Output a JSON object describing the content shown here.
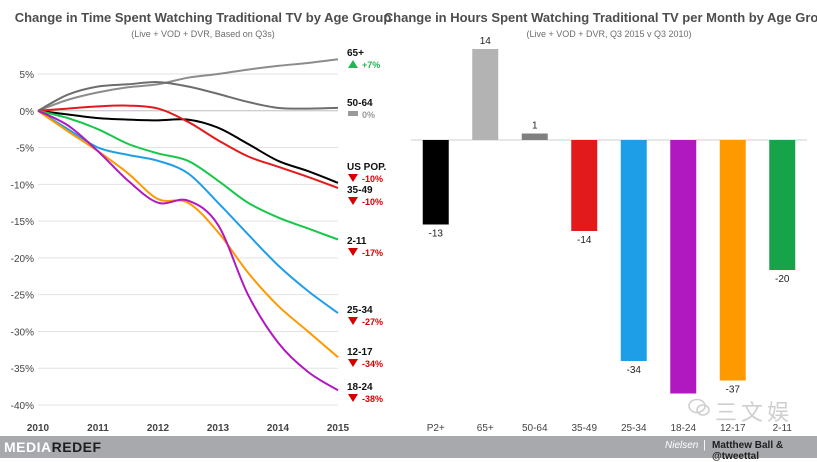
{
  "chart_data": [
    {
      "type": "line",
      "title": "Change in Time Spent Watching Traditional TV by Age Group",
      "subtitle": "(Live + VOD + DVR, Based on Q3s)",
      "x": [
        2010,
        2010.5,
        2011,
        2011.5,
        2012,
        2012.5,
        2013,
        2013.5,
        2014,
        2014.5,
        2015
      ],
      "xticks": [
        "2010",
        "2011",
        "2012",
        "2013",
        "2014",
        "2015"
      ],
      "ylim": [
        -40,
        5
      ],
      "yticks": [
        "5%",
        "0%",
        "-5%",
        "-10%",
        "-15%",
        "-20%",
        "-25%",
        "-30%",
        "-35%",
        "-40%"
      ],
      "grid": true,
      "series": [
        {
          "name": "65+",
          "color": "#8c8c8c",
          "values": [
            0,
            1.5,
            2.5,
            3.2,
            3.6,
            4.5,
            5.0,
            5.6,
            6.1,
            6.5,
            7.0
          ],
          "change": "+7%",
          "direction": "up",
          "arrow_color": "#1db954"
        },
        {
          "name": "50-64",
          "color": "#6d6d6d",
          "values": [
            0,
            2.2,
            3.3,
            3.6,
            3.9,
            3.3,
            2.3,
            1.2,
            0.4,
            0.3,
            0.4
          ],
          "change": "0%",
          "direction": "flat",
          "arrow_color": "#9a9a9a"
        },
        {
          "name": "US POP.",
          "color": "#000000",
          "values": [
            0,
            -0.5,
            -1.0,
            -1.2,
            -1.3,
            -1.2,
            -2.3,
            -4.5,
            -6.8,
            -8.2,
            -9.8
          ],
          "change": "-10%",
          "direction": "down",
          "arrow_color": "#d40000"
        },
        {
          "name": "35-49",
          "color": "#e31a1c",
          "values": [
            0,
            0.3,
            0.6,
            0.7,
            0.3,
            -1.5,
            -4.0,
            -6.2,
            -7.6,
            -9.0,
            -10.5
          ],
          "change": "-10%",
          "direction": "down",
          "arrow_color": "#d40000"
        },
        {
          "name": "2-11",
          "color": "#17c74a",
          "values": [
            0,
            -1.0,
            -2.5,
            -4.5,
            -5.8,
            -6.8,
            -9.5,
            -12.5,
            -14.5,
            -16.0,
            -17.5
          ],
          "change": "-17%",
          "direction": "down",
          "arrow_color": "#d40000"
        },
        {
          "name": "25-34",
          "color": "#1f9ee8",
          "values": [
            0,
            -2.5,
            -5.0,
            -6.0,
            -6.8,
            -8.5,
            -12.5,
            -16.8,
            -21.0,
            -24.5,
            -27.5
          ],
          "change": "-27%",
          "direction": "down",
          "arrow_color": "#d40000"
        },
        {
          "name": "12-17",
          "color": "#ff9900",
          "values": [
            0,
            -2.8,
            -5.5,
            -8.5,
            -12.0,
            -12.5,
            -16.5,
            -22.0,
            -26.5,
            -30.0,
            -33.5
          ],
          "change": "-34%",
          "direction": "down",
          "arrow_color": "#d40000"
        },
        {
          "name": "18-24",
          "color": "#b019c0",
          "values": [
            0,
            -2.0,
            -5.5,
            -9.5,
            -12.5,
            -12.2,
            -15.5,
            -25.0,
            -31.5,
            -35.5,
            -38.0
          ],
          "change": "-38%",
          "direction": "down",
          "arrow_color": "#d40000"
        }
      ]
    },
    {
      "type": "bar",
      "title": "Change in Hours Spent Watching Traditional TV per Month by Age Group",
      "subtitle": "(Live + VOD + DVR, Q3 2015 v Q3 2010)",
      "categories": [
        "P2+",
        "65+",
        "50-64",
        "35-49",
        "25-34",
        "18-24",
        "12-17",
        "2-11"
      ],
      "values": [
        -13,
        14,
        1,
        -14,
        -34,
        -39,
        -37,
        -20
      ],
      "labels": [
        "-13",
        "14",
        "1",
        "-14",
        "-34",
        "",
        "-37",
        "-20"
      ],
      "colors": [
        "#000000",
        "#b3b3b3",
        "#808080",
        "#e31a1c",
        "#1f9ee8",
        "#b019c0",
        "#ff9900",
        "#17a34a"
      ],
      "grid": false
    }
  ],
  "footer": {
    "brand_part1": "MEDIA",
    "brand_part2": "REDEF",
    "source": "Nielsen",
    "separator": "|",
    "credit": "Matthew Ball & @tweettal"
  },
  "watermark": {
    "text": "三文娱"
  }
}
